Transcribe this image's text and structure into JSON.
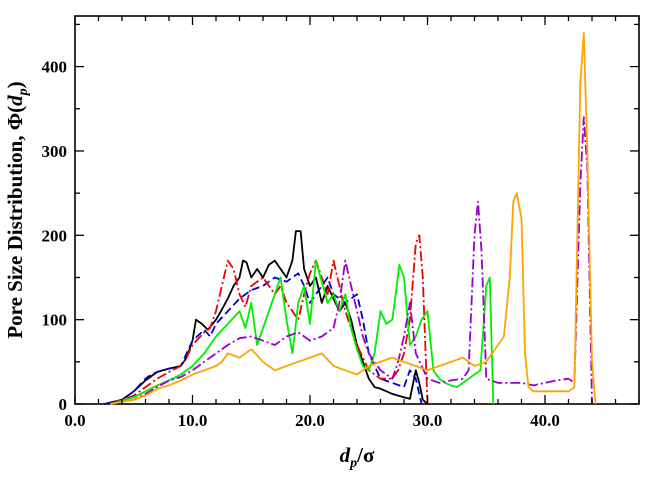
{
  "chart_data": {
    "type": "line",
    "xlabel": "d_p/σ",
    "ylabel": "Pore Size Distribution, Φ(d_p)",
    "xlabel_parts": {
      "var": "d",
      "sub": "p",
      "rest": "/σ"
    },
    "ylabel_parts": {
      "text": "Pore Size Distribution, Φ(",
      "var": "d",
      "sub": "p",
      "close": ")"
    },
    "xlim": [
      0,
      48
    ],
    "ylim": [
      0,
      460
    ],
    "xticks": [
      0,
      10,
      20,
      30,
      40
    ],
    "xtick_labels": [
      "0.0",
      "10.0",
      "20.0",
      "30.0",
      "40.0"
    ],
    "yticks": [
      0,
      100,
      200,
      300,
      400
    ],
    "ytick_labels": [
      "0",
      "100",
      "200",
      "300",
      "400"
    ],
    "grid": false,
    "legend": "none",
    "series": [
      {
        "color": "#000000",
        "dash": "solid",
        "x": [
          2.5,
          4,
          5,
          6,
          7,
          8,
          9,
          9.5,
          10,
          10.3,
          10.8,
          11.3,
          12,
          12.5,
          13,
          13.5,
          14,
          14.3,
          14.6,
          15,
          15.5,
          16,
          16.5,
          17,
          17.5,
          18,
          18.5,
          18.8,
          19.2,
          19.5,
          20,
          20.5,
          21,
          21.5,
          22,
          22.5,
          23,
          23.5,
          24,
          24.5,
          25,
          25.5,
          26,
          26.5,
          27,
          27.5,
          28,
          28.5,
          29,
          29.3,
          29.6,
          30
        ],
        "y": [
          0,
          5,
          15,
          28,
          38,
          42,
          45,
          55,
          75,
          100,
          95,
          88,
          100,
          112,
          125,
          140,
          150,
          170,
          168,
          150,
          160,
          150,
          165,
          170,
          160,
          150,
          170,
          205,
          205,
          160,
          140,
          150,
          120,
          140,
          125,
          110,
          120,
          100,
          70,
          50,
          30,
          20,
          18,
          15,
          12,
          10,
          8,
          6,
          40,
          25,
          5,
          0
        ]
      },
      {
        "color": "#0000cc",
        "dash": "8,4",
        "x": [
          2.5,
          4,
          5,
          6,
          6.5,
          7,
          8,
          9,
          9.5,
          10,
          11,
          11.5,
          12,
          13,
          14,
          15,
          16,
          16.5,
          17,
          18,
          18.5,
          19,
          19.5,
          20,
          21,
          21.5,
          22,
          23,
          24,
          24.5,
          25,
          26,
          27,
          28,
          28.5,
          29,
          29.5
        ],
        "y": [
          0,
          5,
          15,
          30,
          35,
          38,
          42,
          45,
          60,
          75,
          88,
          80,
          95,
          110,
          125,
          135,
          140,
          145,
          150,
          145,
          150,
          155,
          140,
          120,
          140,
          150,
          130,
          120,
          130,
          100,
          60,
          30,
          25,
          20,
          40,
          30,
          0
        ]
      },
      {
        "color": "#ee0000",
        "dash": "10,3,2,3",
        "x": [
          3,
          5,
          6,
          7,
          8,
          9,
          9.5,
          10,
          11,
          11.5,
          12,
          12.5,
          13,
          13.5,
          14,
          14.5,
          15,
          16,
          17,
          17.5,
          18,
          18.5,
          19,
          19.5,
          20,
          20.5,
          21,
          21.5,
          22,
          22.5,
          23,
          24,
          25,
          26,
          27,
          27.5,
          28,
          28.5,
          29,
          29.3,
          29.6,
          30
        ],
        "y": [
          0,
          10,
          20,
          30,
          38,
          45,
          55,
          70,
          85,
          90,
          110,
          140,
          170,
          160,
          130,
          115,
          140,
          150,
          130,
          140,
          120,
          110,
          100,
          130,
          155,
          170,
          150,
          130,
          170,
          140,
          110,
          70,
          40,
          30,
          30,
          40,
          60,
          100,
          190,
          200,
          150,
          0
        ]
      },
      {
        "color": "#00ee00",
        "dash": "solid",
        "x": [
          3,
          5,
          6,
          7,
          8,
          9,
          10,
          11,
          12,
          13,
          14,
          14.5,
          15,
          15.5,
          16,
          17,
          17.5,
          18,
          18.5,
          19,
          19.5,
          20,
          20.5,
          21,
          21.5,
          22,
          22.5,
          23,
          23.5,
          24,
          24.5,
          25,
          25.5,
          26,
          26.5,
          27,
          27.3,
          27.6,
          28,
          28.5,
          29,
          29.5,
          30,
          30.5,
          31,
          31.5,
          32,
          32.5,
          33,
          33.5,
          34,
          34.5,
          35,
          35.3,
          35.6
        ],
        "y": [
          0,
          8,
          15,
          22,
          28,
          35,
          45,
          60,
          80,
          95,
          110,
          90,
          120,
          70,
          90,
          130,
          150,
          100,
          60,
          120,
          140,
          95,
          170,
          145,
          120,
          130,
          110,
          130,
          90,
          65,
          45,
          40,
          60,
          110,
          95,
          100,
          130,
          165,
          150,
          70,
          80,
          100,
          110,
          40,
          30,
          25,
          22,
          20,
          25,
          30,
          35,
          40,
          140,
          150,
          0
        ]
      },
      {
        "color": "#9900cc",
        "dash": "10,3,2,3",
        "x": [
          3,
          5,
          6,
          7,
          8,
          9,
          10,
          11,
          12,
          13,
          14,
          15,
          16,
          17,
          18,
          19,
          20,
          21,
          22,
          22.5,
          23,
          23.5,
          24,
          24.5,
          25,
          25.5,
          26,
          26.5,
          27,
          27.5,
          28,
          28.5,
          29,
          30,
          31,
          32,
          33,
          33.5,
          34,
          34.3,
          34.6,
          35,
          36,
          37,
          38,
          39,
          40,
          41,
          42,
          42.5,
          43,
          43.3,
          43.6,
          44
        ],
        "y": [
          0,
          5,
          12,
          20,
          28,
          32,
          40,
          50,
          60,
          70,
          78,
          80,
          75,
          70,
          80,
          85,
          75,
          80,
          90,
          120,
          170,
          140,
          110,
          80,
          60,
          50,
          40,
          35,
          30,
          50,
          80,
          120,
          60,
          30,
          25,
          28,
          30,
          40,
          200,
          240,
          180,
          30,
          25,
          25,
          25,
          22,
          25,
          28,
          30,
          25,
          260,
          340,
          280,
          0
        ]
      },
      {
        "color": "#ffa500",
        "dash": "solid",
        "x": [
          3,
          5,
          6,
          7,
          8,
          9,
          10,
          11,
          12,
          12.5,
          13,
          14,
          15,
          16,
          17,
          18,
          19,
          20,
          21,
          22,
          23,
          24,
          25,
          26,
          27,
          28,
          29,
          30,
          31,
          32,
          33,
          34,
          35,
          35.5,
          36,
          36.5,
          37,
          37.3,
          37.6,
          38,
          38.3,
          38.6,
          39,
          40,
          41,
          42,
          42.5,
          43,
          43.3,
          43.6,
          44,
          44.3
        ],
        "y": [
          0,
          5,
          10,
          18,
          22,
          28,
          35,
          40,
          45,
          50,
          60,
          55,
          65,
          50,
          40,
          45,
          50,
          55,
          60,
          45,
          40,
          35,
          45,
          50,
          55,
          50,
          45,
          40,
          45,
          50,
          55,
          45,
          50,
          60,
          70,
          80,
          150,
          240,
          250,
          220,
          60,
          20,
          15,
          15,
          15,
          15,
          20,
          380,
          440,
          300,
          50,
          0
        ]
      }
    ]
  }
}
